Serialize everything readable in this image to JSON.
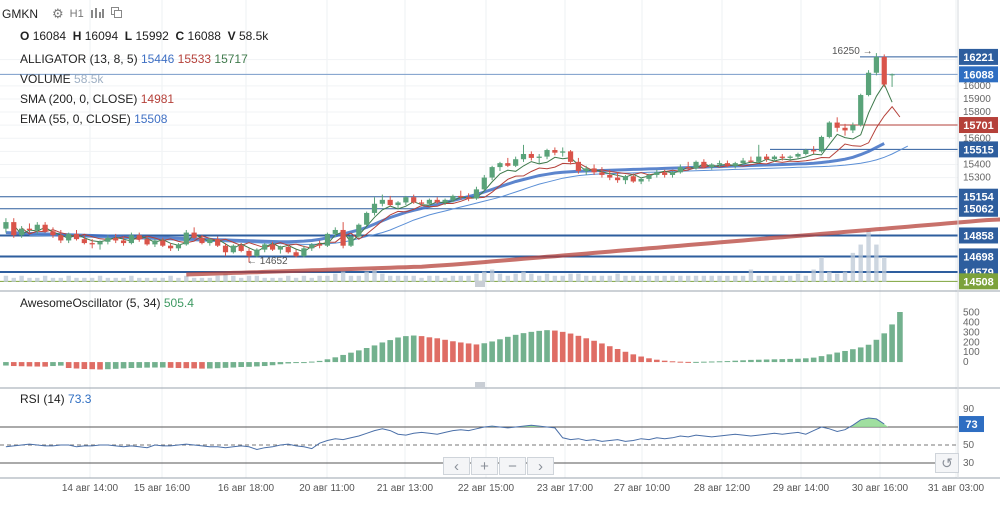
{
  "header": {
    "symbol": "GMKN",
    "timeframe": "H1",
    "ohlc": {
      "o_label": "O",
      "o": "16084",
      "h_label": "H",
      "h": "16094",
      "l_label": "L",
      "l": "15992",
      "c_label": "C",
      "c": "16088",
      "v_label": "V",
      "v": "58.5k"
    }
  },
  "legend": {
    "alligator": {
      "label": "ALLIGATOR (13, 8, 5)",
      "jaw": "15446",
      "teeth": "15533",
      "lips": "15717"
    },
    "volume": {
      "label": "VOLUME",
      "value": "58.5k"
    },
    "sma": {
      "label": "SMA (200, 0, CLOSE)",
      "value": "14981"
    },
    "ema": {
      "label": "EMA (55, 0, CLOSE)",
      "value": "15508"
    }
  },
  "price_badges": [
    {
      "text": "16221",
      "color": "#2e5e9e"
    },
    {
      "text": "16088",
      "color": "#2e6ec2"
    },
    {
      "text": "15701",
      "color": "#b5413a"
    },
    {
      "text": "15515",
      "color": "#2e5e9e"
    },
    {
      "text": "15154",
      "color": "#2e5e9e"
    },
    {
      "text": "15062",
      "color": "#2e5e9e"
    },
    {
      "text": "14858",
      "color": "#2e5e9e"
    },
    {
      "text": "14698",
      "color": "#2e5e9e"
    },
    {
      "text": "14579",
      "color": "#2e5e9e"
    },
    {
      "text": "14508",
      "color": "#7ca23a"
    }
  ],
  "price_ticks": [
    "16200",
    "16000",
    "15900",
    "15800",
    "15700",
    "15600",
    "15500",
    "15400",
    "15300"
  ],
  "annotations": {
    "high": "16250",
    "low": "14652"
  },
  "oscillator": {
    "label": "AwesomeOscillator (5, 34)",
    "value": "505.4",
    "ticks": [
      "500",
      "400",
      "300",
      "200",
      "100",
      "0"
    ]
  },
  "rsi": {
    "label": "RSI (14)",
    "value": "73.3",
    "badge": "73",
    "ticks": [
      "90",
      "70",
      "50",
      "30"
    ]
  },
  "x_axis": [
    "14 авг 14:00",
    "15 авг 16:00",
    "16 авг 18:00",
    "20 авг 11:00",
    "21 авг 13:00",
    "22 авг 15:00",
    "23 авг 17:00",
    "27 авг 10:00",
    "28 авг 12:00",
    "29 авг 14:00",
    "30 авг 16:00",
    "31 авг 03:00"
  ],
  "nav": {
    "left": "‹",
    "plus": "+",
    "minus": "−",
    "right": "›",
    "reset": "↺"
  },
  "icons": {
    "settings": "gear-icon",
    "bars": "bar-chart-icon",
    "layers": "layers-icon"
  },
  "colors": {
    "up": "#5aa37a",
    "down": "#d9544a",
    "alligator_jaw": "#3f70c4",
    "alligator_teeth": "#b5413a",
    "alligator_lips": "#3f7a4c",
    "sma": "#b5413a",
    "ema": "#3f70c4",
    "rsi_line": "#4a6fa8",
    "rsi_fill": "#8fd98f",
    "volume": "#bcc8d6"
  },
  "chart_data": {
    "type": "candlestick",
    "price_range": [
      14480,
      16350
    ],
    "candles": [
      [
        14910,
        14990,
        14880,
        14960
      ],
      [
        14960,
        14990,
        14840,
        14860
      ],
      [
        14860,
        14930,
        14840,
        14910
      ],
      [
        14910,
        14950,
        14880,
        14900
      ],
      [
        14900,
        14960,
        14870,
        14940
      ],
      [
        14940,
        14960,
        14880,
        14890
      ],
      [
        14890,
        14920,
        14840,
        14860
      ],
      [
        14860,
        14900,
        14800,
        14820
      ],
      [
        14820,
        14880,
        14800,
        14870
      ],
      [
        14870,
        14900,
        14820,
        14830
      ],
      [
        14830,
        14860,
        14790,
        14800
      ],
      [
        14800,
        14830,
        14760,
        14790
      ],
      [
        14790,
        14820,
        14750,
        14810
      ],
      [
        14810,
        14860,
        14790,
        14840
      ],
      [
        14840,
        14870,
        14800,
        14820
      ],
      [
        14820,
        14850,
        14780,
        14800
      ],
      [
        14800,
        14880,
        14790,
        14860
      ],
      [
        14860,
        14880,
        14810,
        14830
      ],
      [
        14830,
        14850,
        14780,
        14790
      ],
      [
        14790,
        14830,
        14770,
        14820
      ],
      [
        14820,
        14840,
        14770,
        14780
      ],
      [
        14780,
        14800,
        14740,
        14760
      ],
      [
        14760,
        14800,
        14740,
        14790
      ],
      [
        14790,
        14900,
        14780,
        14880
      ],
      [
        14880,
        14920,
        14830,
        14840
      ],
      [
        14840,
        14860,
        14790,
        14800
      ],
      [
        14800,
        14840,
        14780,
        14830
      ],
      [
        14830,
        14850,
        14770,
        14780
      ],
      [
        14780,
        14800,
        14700,
        14730
      ],
      [
        14730,
        14790,
        14720,
        14780
      ],
      [
        14780,
        14800,
        14730,
        14740
      ],
      [
        14740,
        14760,
        14652,
        14700
      ],
      [
        14700,
        14760,
        14690,
        14750
      ],
      [
        14750,
        14800,
        14730,
        14790
      ],
      [
        14790,
        14810,
        14740,
        14750
      ],
      [
        14750,
        14780,
        14720,
        14770
      ],
      [
        14770,
        14790,
        14720,
        14730
      ],
      [
        14730,
        14750,
        14690,
        14700
      ],
      [
        14700,
        14780,
        14690,
        14760
      ],
      [
        14760,
        14800,
        14740,
        14790
      ],
      [
        14790,
        14820,
        14760,
        14780
      ],
      [
        14780,
        14880,
        14770,
        14870
      ],
      [
        14870,
        14920,
        14850,
        14900
      ],
      [
        14900,
        14960,
        14760,
        14780
      ],
      [
        14780,
        14860,
        14770,
        14850
      ],
      [
        14850,
        14950,
        14840,
        14940
      ],
      [
        14940,
        15040,
        14930,
        15030
      ],
      [
        15030,
        15150,
        15010,
        15100
      ],
      [
        15100,
        15170,
        15080,
        15130
      ],
      [
        15130,
        15160,
        15080,
        15090
      ],
      [
        15090,
        15120,
        15060,
        15110
      ],
      [
        15110,
        15160,
        15090,
        15150
      ],
      [
        15150,
        15170,
        15100,
        15110
      ],
      [
        15110,
        15130,
        15080,
        15100
      ],
      [
        15100,
        15140,
        15080,
        15130
      ],
      [
        15130,
        15150,
        15100,
        15110
      ],
      [
        15110,
        15140,
        15090,
        15130
      ],
      [
        15130,
        15170,
        15110,
        15160
      ],
      [
        15160,
        15200,
        15130,
        15150
      ],
      [
        15150,
        15180,
        15120,
        15140
      ],
      [
        15140,
        15230,
        15130,
        15210
      ],
      [
        15210,
        15320,
        15200,
        15300
      ],
      [
        15300,
        15390,
        15280,
        15380
      ],
      [
        15380,
        15420,
        15350,
        15410
      ],
      [
        15410,
        15450,
        15380,
        15390
      ],
      [
        15390,
        15460,
        15380,
        15440
      ],
      [
        15440,
        15550,
        15420,
        15480
      ],
      [
        15480,
        15500,
        15430,
        15450
      ],
      [
        15450,
        15480,
        15410,
        15460
      ],
      [
        15460,
        15520,
        15440,
        15510
      ],
      [
        15510,
        15530,
        15470,
        15490
      ],
      [
        15490,
        15530,
        15460,
        15500
      ],
      [
        15500,
        15510,
        15400,
        15420
      ],
      [
        15420,
        15450,
        15330,
        15350
      ],
      [
        15350,
        15390,
        15320,
        15370
      ],
      [
        15370,
        15400,
        15320,
        15340
      ],
      [
        15340,
        15380,
        15300,
        15320
      ],
      [
        15320,
        15360,
        15280,
        15300
      ],
      [
        15300,
        15340,
        15260,
        15280
      ],
      [
        15280,
        15320,
        15250,
        15310
      ],
      [
        15310,
        15330,
        15260,
        15270
      ],
      [
        15270,
        15300,
        15250,
        15290
      ],
      [
        15290,
        15330,
        15270,
        15320
      ],
      [
        15320,
        15360,
        15300,
        15340
      ],
      [
        15340,
        15360,
        15300,
        15320
      ],
      [
        15320,
        15350,
        15300,
        15340
      ],
      [
        15340,
        15400,
        15330,
        15380
      ],
      [
        15380,
        15420,
        15360,
        15370
      ],
      [
        15370,
        15430,
        15360,
        15420
      ],
      [
        15420,
        15440,
        15370,
        15380
      ],
      [
        15380,
        15410,
        15360,
        15400
      ],
      [
        15400,
        15430,
        15380,
        15410
      ],
      [
        15410,
        15430,
        15380,
        15390
      ],
      [
        15390,
        15420,
        15370,
        15410
      ],
      [
        15410,
        15450,
        15400,
        15430
      ],
      [
        15430,
        15460,
        15410,
        15420
      ],
      [
        15420,
        15550,
        15410,
        15460
      ],
      [
        15460,
        15480,
        15420,
        15440
      ],
      [
        15440,
        15470,
        15420,
        15460
      ],
      [
        15460,
        15480,
        15430,
        15450
      ],
      [
        15450,
        15470,
        15430,
        15460
      ],
      [
        15460,
        15490,
        15440,
        15480
      ],
      [
        15480,
        15520,
        15470,
        15510
      ],
      [
        15510,
        15540,
        15480,
        15500
      ],
      [
        15500,
        15620,
        15490,
        15610
      ],
      [
        15610,
        15730,
        15600,
        15720
      ],
      [
        15720,
        15760,
        15650,
        15680
      ],
      [
        15680,
        15710,
        15620,
        15660
      ],
      [
        15660,
        15720,
        15640,
        15700
      ],
      [
        15700,
        15940,
        15690,
        15930
      ],
      [
        15930,
        16120,
        15920,
        16100
      ],
      [
        16100,
        16250,
        16080,
        16221
      ],
      [
        16221,
        16240,
        15990,
        16010
      ],
      [
        16084,
        16094,
        15992,
        16088
      ]
    ],
    "volume": [
      3,
      2,
      3,
      2,
      2,
      3,
      2,
      2,
      3,
      2,
      2,
      2,
      3,
      2,
      2,
      2,
      3,
      2,
      2,
      2,
      2,
      3,
      2,
      3,
      2,
      2,
      2,
      3,
      4,
      3,
      2,
      3,
      3,
      2,
      2,
      2,
      3,
      2,
      3,
      2,
      3,
      3,
      4,
      5,
      3,
      3,
      5,
      6,
      4,
      3,
      3,
      3,
      3,
      2,
      3,
      3,
      2,
      3,
      3,
      3,
      4,
      5,
      6,
      4,
      3,
      4,
      5,
      4,
      3,
      4,
      3,
      3,
      4,
      4,
      3,
      3,
      3,
      3,
      4,
      3,
      3,
      3,
      3,
      3,
      3,
      3,
      3,
      3,
      3,
      3,
      3,
      3,
      3,
      3,
      3,
      6,
      3,
      3,
      3,
      3,
      3,
      4,
      3,
      6,
      12,
      5,
      4,
      5,
      14,
      18,
      25,
      18,
      12
    ],
    "awesome_oscillator": [
      -35,
      -40,
      -42,
      -44,
      -45,
      -46,
      -40,
      -36,
      -60,
      -65,
      -70,
      -72,
      -75,
      -72,
      -68,
      -64,
      -60,
      -58,
      -56,
      -55,
      -55,
      -58,
      -60,
      -62,
      -64,
      -66,
      -65,
      -62,
      -58,
      -55,
      -50,
      -48,
      -44,
      -40,
      -32,
      -22,
      -14,
      -8,
      -4,
      5,
      12,
      28,
      48,
      72,
      95,
      118,
      142,
      168,
      198,
      222,
      248,
      262,
      268,
      262,
      250,
      240,
      225,
      210,
      198,
      188,
      178,
      190,
      208,
      230,
      255,
      275,
      292,
      305,
      315,
      322,
      318,
      305,
      288,
      265,
      240,
      215,
      188,
      160,
      132,
      104,
      78,
      56,
      38,
      24,
      14,
      8,
      4,
      2,
      2,
      4,
      6,
      8,
      10,
      14,
      18,
      22,
      24,
      26,
      28,
      30,
      32,
      34,
      38,
      45,
      60,
      78,
      96,
      112,
      130,
      148,
      175,
      225,
      290,
      380,
      505.4
    ],
    "rsi": [
      48,
      49,
      50,
      51,
      50,
      49,
      49,
      50,
      50,
      48,
      49,
      49,
      50,
      50,
      49,
      48,
      49,
      48,
      47,
      50,
      49,
      49,
      50,
      51,
      50,
      49,
      48,
      48,
      47,
      48,
      49,
      48,
      45,
      47,
      48,
      50,
      51,
      49,
      48,
      46,
      52,
      55,
      57,
      56,
      58,
      60,
      63,
      66,
      68,
      66,
      62,
      61,
      63,
      64,
      63,
      62,
      64,
      66,
      67,
      66,
      68,
      70,
      71,
      70,
      69,
      70,
      71,
      72,
      71,
      70,
      69,
      58,
      56,
      57,
      55,
      56,
      54,
      55,
      56,
      54,
      55,
      57,
      56,
      58,
      57,
      58,
      60,
      59,
      61,
      60,
      59,
      60,
      61,
      62,
      61,
      60,
      61,
      62,
      63,
      62,
      63,
      64,
      62,
      66,
      70,
      68,
      65,
      67,
      72,
      78,
      80,
      79,
      73.3
    ],
    "alligator_jaw": [
      14880,
      14878,
      14876,
      14874,
      14872,
      14870,
      14868,
      14866,
      14864,
      14862,
      14860,
      14858,
      14856,
      14854,
      14852,
      14850,
      14848,
      14846,
      14844,
      14842,
      14840,
      14838,
      14836,
      14834,
      14832,
      14830,
      14828,
      14826,
      14824,
      14822,
      14820,
      14818,
      14816,
      14814,
      14812,
      14810,
      14810,
      14812,
      14815,
      14820,
      14828,
      14840,
      14855,
      14870,
      14885,
      14900,
      14920,
      14945,
      14970,
      14995,
      15015,
      15035,
      15050,
      15065,
      15080,
      15095,
      15110,
      15125,
      15140,
      15155,
      15170,
      15190,
      15210,
      15230,
      15250,
      15270,
      15285,
      15300,
      15315,
      15325,
      15335,
      15340,
      15345,
      15348,
      15350,
      15352,
      15354,
      15356,
      15358,
      15360,
      15362,
      15364,
      15366,
      15368,
      15370,
      15372,
      15374,
      15376,
      15378,
      15380,
      15382,
      15384,
      15386,
      15388,
      15390,
      15392,
      15394,
      15396,
      15398,
      15400,
      15402,
      15404,
      15406,
      15410,
      15415,
      15422,
      15430,
      15440,
      15455,
      15475,
      15500,
      15530,
      15560
    ],
    "sma": [
      14560,
      14562,
      14564,
      14566,
      14568,
      14570,
      14572,
      14574,
      14576,
      14578,
      14580,
      14582,
      14584,
      14586,
      14588,
      14590,
      14592,
      14594,
      14596,
      14598,
      14600,
      14602,
      14604,
      14606,
      14608,
      14610,
      14612,
      14614,
      14616,
      14618,
      14620,
      14624,
      14628,
      14632,
      14636,
      14640,
      14645,
      14650,
      14655,
      14660,
      14665,
      14670,
      14675,
      14680,
      14685,
      14690,
      14695,
      14700,
      14705,
      14710,
      14715,
      14720,
      14725,
      14730,
      14735,
      14740,
      14745,
      14750,
      14755,
      14760,
      14765,
      14770,
      14775,
      14780,
      14785,
      14790,
      14795,
      14800,
      14805,
      14810,
      14815,
      14820,
      14825,
      14830,
      14835,
      14840,
      14845,
      14850,
      14855,
      14860,
      14865,
      14870,
      14875,
      14880,
      14885,
      14890,
      14895,
      14900,
      14905,
      14910,
      14915,
      14920,
      14925,
      14930,
      14935,
      14940,
      14945,
      14950,
      14955,
      14960,
      14965,
      14970,
      14975,
      14978,
      14981
    ]
  }
}
